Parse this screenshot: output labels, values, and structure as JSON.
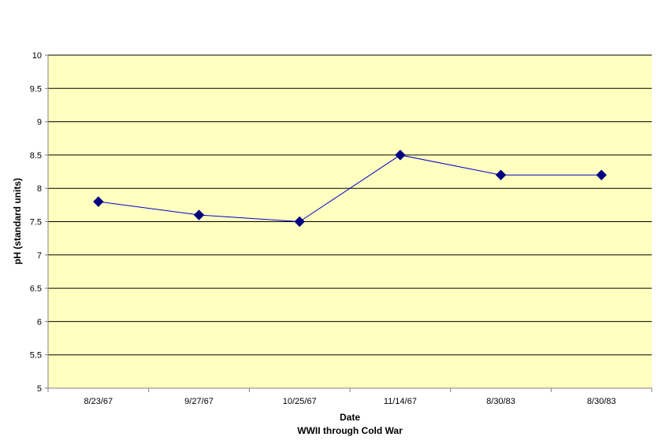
{
  "chart_data": {
    "type": "line",
    "categories": [
      "8/23/67",
      "9/27/67",
      "10/25/67",
      "11/14/67",
      "8/30/83",
      "8/30/83"
    ],
    "series": [
      {
        "values": [
          7.8,
          7.6,
          7.5,
          8.5,
          8.2,
          8.2
        ]
      }
    ],
    "title": "",
    "xlabel": "Date",
    "xlabel_sub": "WWII through Cold War",
    "ylabel": "pH (standard units)",
    "ylim": [
      5,
      10
    ],
    "ytick_step": 0.5,
    "yticks": [
      "5",
      "5.5",
      "6",
      "6.5",
      "7",
      "7.5",
      "8",
      "8.5",
      "9",
      "9.5",
      "10"
    ],
    "grid": true,
    "legend": "none",
    "colors": {
      "plot_background": "#FFFFC0",
      "line": "#0000CC",
      "marker": "#000080",
      "gridline": "#000000",
      "axis": "#808080"
    },
    "marker": "diamond"
  }
}
